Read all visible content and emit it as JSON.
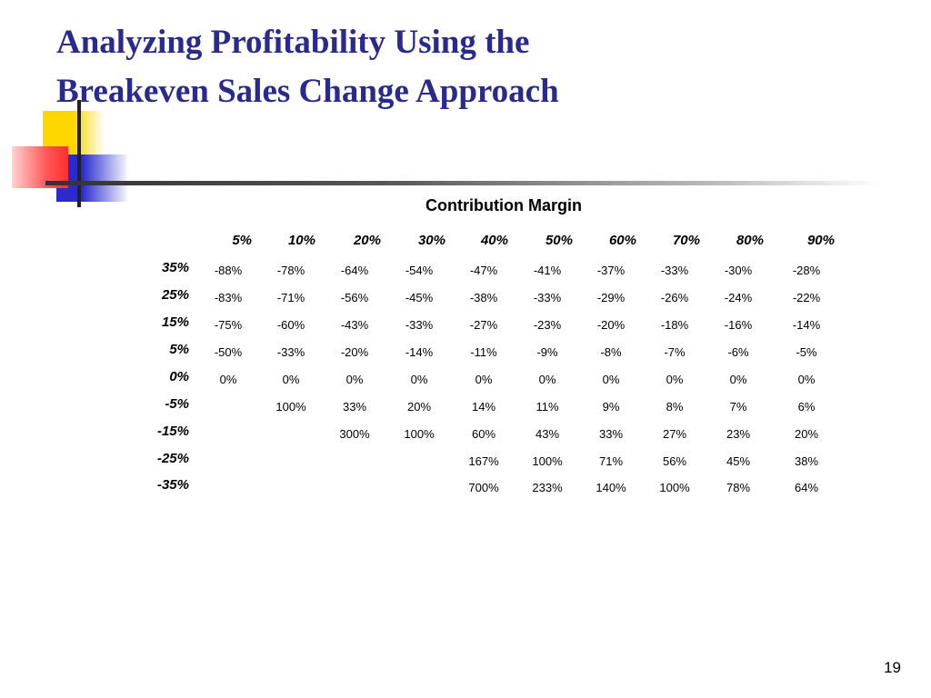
{
  "title": {
    "line1": "Analyzing Profitability Using the",
    "line2": "Breakeven Sales Change Approach"
  },
  "table": {
    "heading": "Contribution Margin",
    "columns": [
      "5%",
      "10%",
      "20%",
      "30%",
      "40%",
      "50%",
      "60%",
      "70%",
      "80%",
      "90%"
    ],
    "rows": [
      {
        "label": "35%",
        "values": [
          "-88%",
          "-78%",
          "-64%",
          "-54%",
          "-47%",
          "-41%",
          "-37%",
          "-33%",
          "-30%",
          "-28%"
        ]
      },
      {
        "label": "25%",
        "values": [
          "-83%",
          "-71%",
          "-56%",
          "-45%",
          "-38%",
          "-33%",
          "-29%",
          "-26%",
          "-24%",
          "-22%"
        ]
      },
      {
        "label": "15%",
        "values": [
          "-75%",
          "-60%",
          "-43%",
          "-33%",
          "-27%",
          "-23%",
          "-20%",
          "-18%",
          "-16%",
          "-14%"
        ]
      },
      {
        "label": "5%",
        "values": [
          "-50%",
          "-33%",
          "-20%",
          "-14%",
          "-11%",
          "-9%",
          "-8%",
          "-7%",
          "-6%",
          "-5%"
        ]
      },
      {
        "label": "0%",
        "values": [
          "0%",
          "0%",
          "0%",
          "0%",
          "0%",
          "0%",
          "0%",
          "0%",
          "0%",
          "0%"
        ]
      },
      {
        "label": "-5%",
        "values": [
          "",
          "100%",
          "33%",
          "20%",
          "14%",
          "11%",
          "9%",
          "8%",
          "7%",
          "6%"
        ]
      },
      {
        "label": "-15%",
        "values": [
          "",
          "",
          "300%",
          "100%",
          "60%",
          "43%",
          "33%",
          "27%",
          "23%",
          "20%"
        ]
      },
      {
        "label": "-25%",
        "values": [
          "",
          "",
          "",
          "",
          "167%",
          "100%",
          "71%",
          "56%",
          "45%",
          "38%"
        ]
      },
      {
        "label": "-35%",
        "values": [
          "",
          "",
          "",
          "",
          "700%",
          "233%",
          "140%",
          "100%",
          "78%",
          "64%"
        ]
      }
    ]
  },
  "page_number": "19",
  "colors": {
    "title": "#2a2a8c",
    "logo_yellow": "#ffd700",
    "logo_blue": "#2a2acf",
    "logo_red": "#ff2e2e"
  }
}
